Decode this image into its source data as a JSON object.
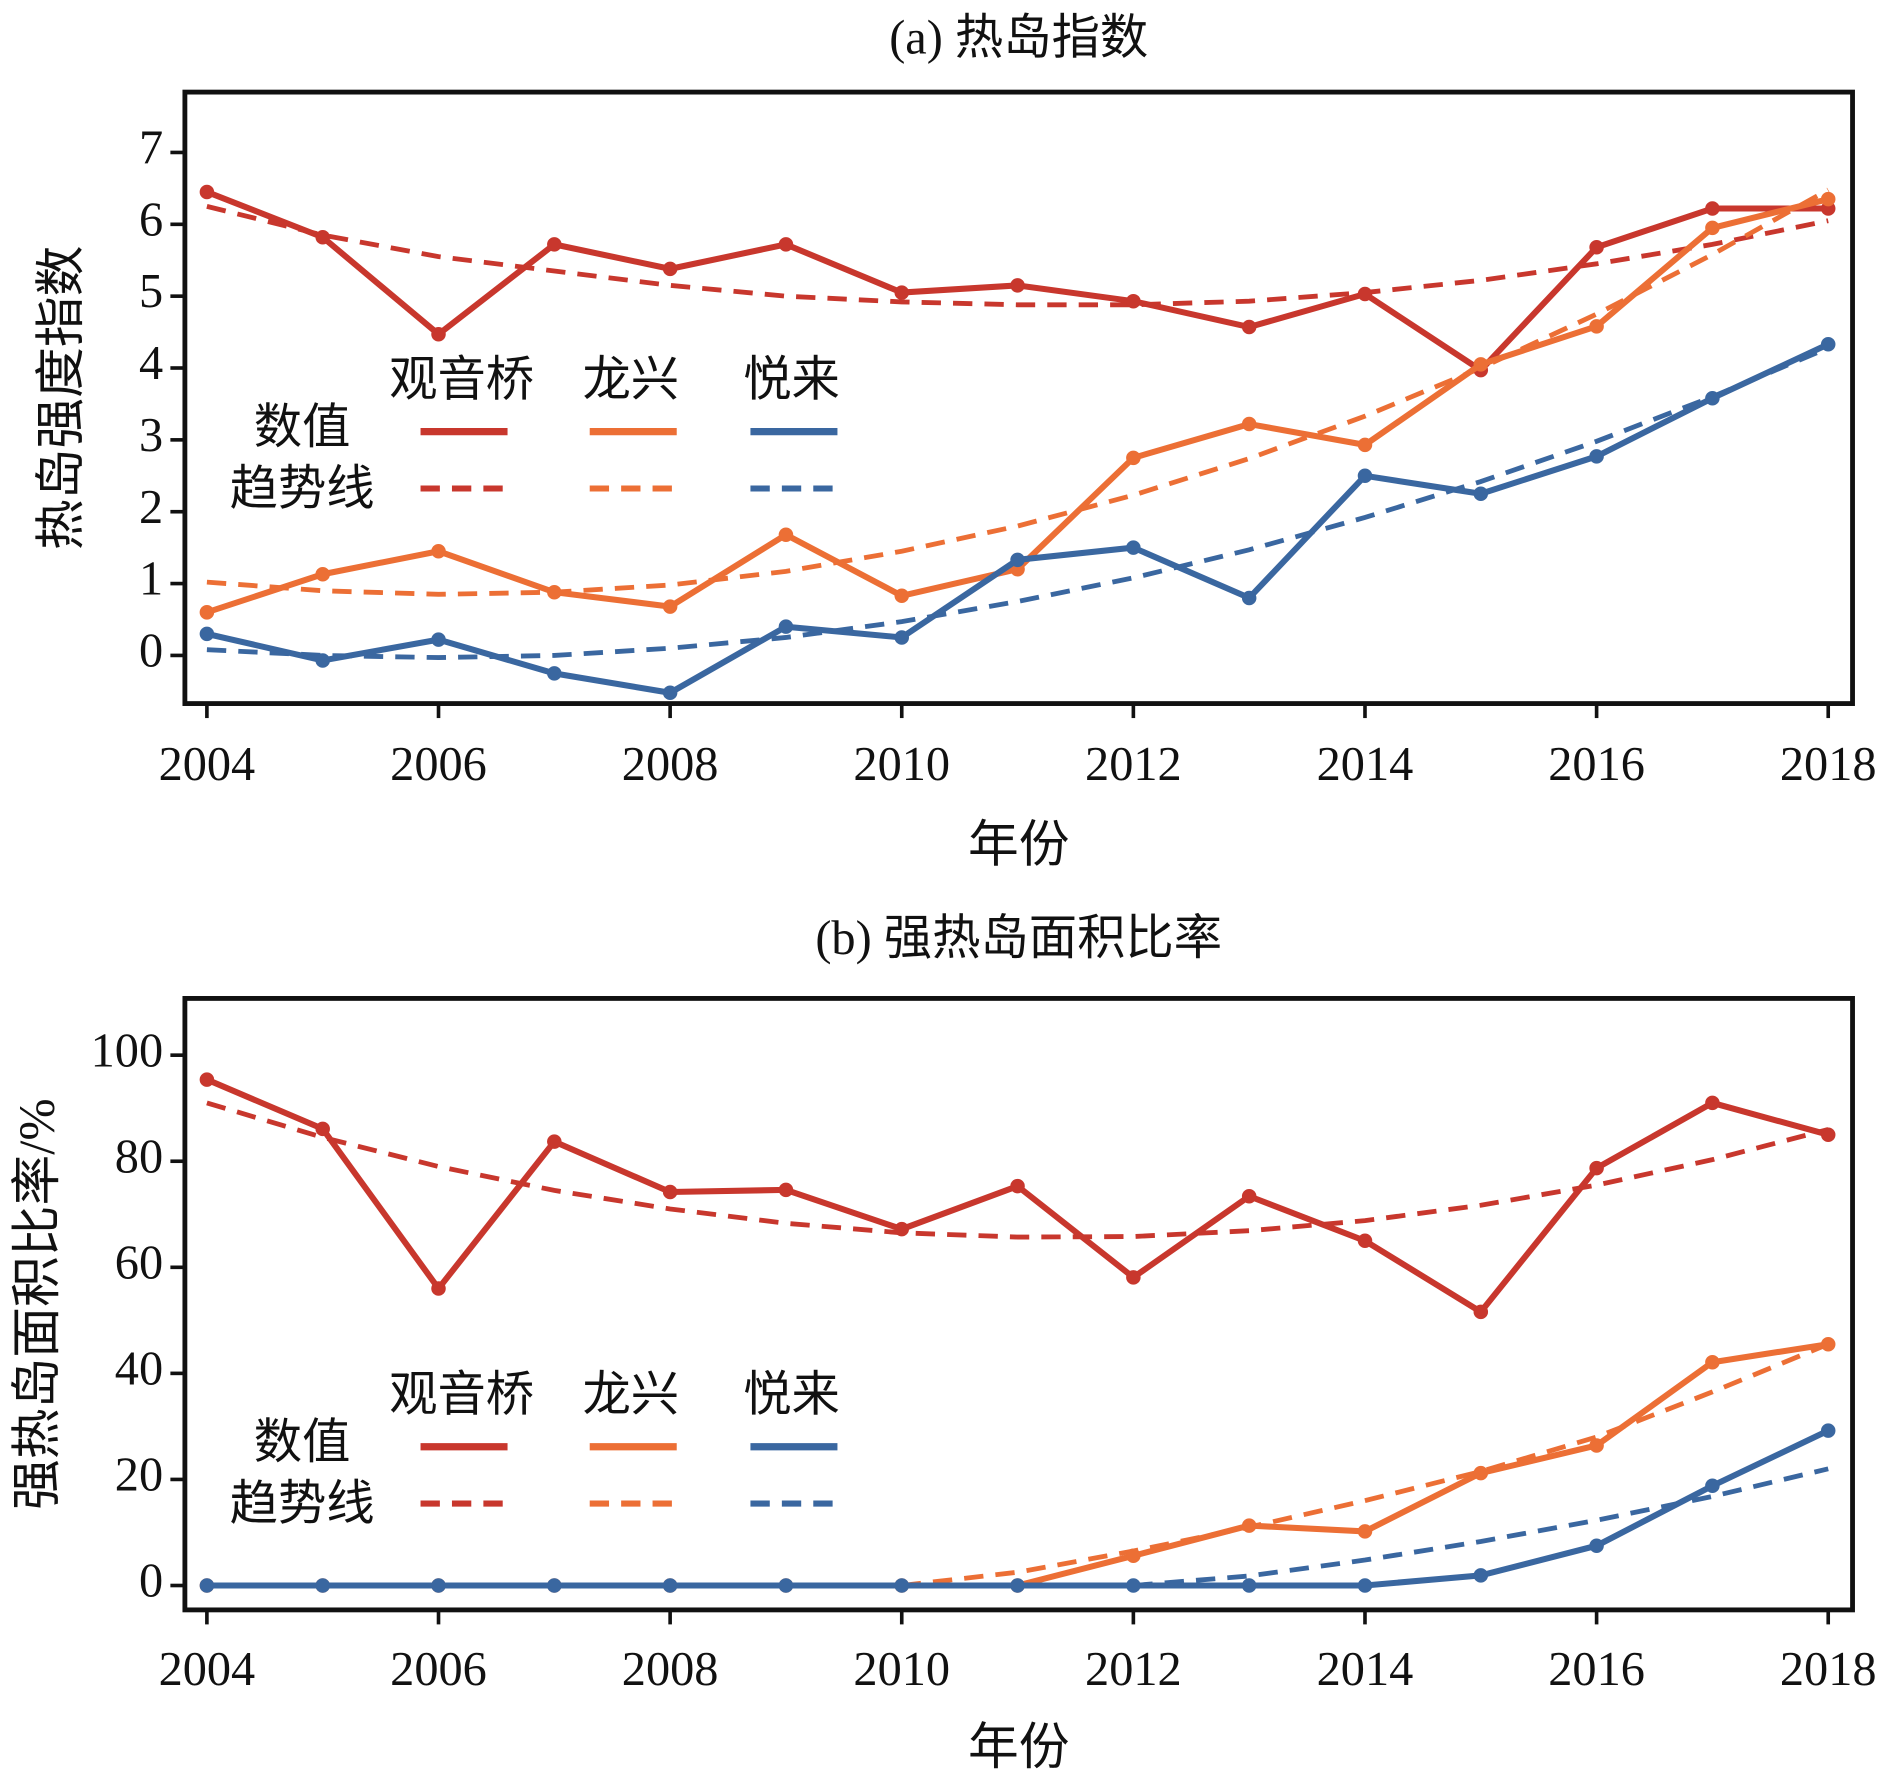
{
  "chart_data": [
    {
      "type": "line",
      "title": "(a) 热岛指数",
      "xlabel": "年份",
      "ylabel": "热岛强度指数",
      "x": [
        2004,
        2005,
        2006,
        2007,
        2008,
        2009,
        2010,
        2011,
        2012,
        2013,
        2014,
        2015,
        2016,
        2017,
        2018
      ],
      "xlim": [
        2003.81,
        2018.21
      ],
      "xticks": [
        2004,
        2006,
        2008,
        2010,
        2012,
        2014,
        2016,
        2018
      ],
      "ylim": [
        -0.67,
        7.84
      ],
      "yticks": [
        0,
        1,
        2,
        3,
        4,
        5,
        6,
        7
      ],
      "legend_rows": [
        "数值",
        "趋势线"
      ],
      "series": [
        {
          "name": "观音桥",
          "color": "#c8372d",
          "values": [
            6.45,
            5.82,
            4.47,
            5.72,
            5.38,
            5.72,
            5.05,
            5.15,
            4.93,
            4.57,
            5.03,
            3.97,
            5.68,
            6.22,
            6.22
          ],
          "trend": [
            6.25,
            5.85,
            5.55,
            5.35,
            5.15,
            5.0,
            4.92,
            4.88,
            4.88,
            4.93,
            5.05,
            5.22,
            5.45,
            5.72,
            6.05
          ]
        },
        {
          "name": "龙兴",
          "color": "#ec6f35",
          "values": [
            0.6,
            1.13,
            1.45,
            0.88,
            0.68,
            1.68,
            0.83,
            1.2,
            2.75,
            3.22,
            2.93,
            4.05,
            4.58,
            5.95,
            6.35
          ],
          "trend": [
            1.02,
            0.9,
            0.85,
            0.88,
            0.98,
            1.17,
            1.45,
            1.8,
            2.23,
            2.74,
            3.33,
            4.0,
            4.75,
            5.58,
            6.48
          ]
        },
        {
          "name": "悦来",
          "color": "#3a67a0",
          "values": [
            0.3,
            -0.07,
            0.22,
            -0.25,
            -0.52,
            0.4,
            0.25,
            1.33,
            1.5,
            0.8,
            2.5,
            2.25,
            2.77,
            3.58,
            4.33
          ],
          "trend": [
            0.08,
            0.0,
            -0.03,
            0.0,
            0.1,
            0.25,
            0.47,
            0.75,
            1.08,
            1.47,
            1.92,
            2.42,
            2.98,
            3.6,
            4.28
          ]
        }
      ]
    },
    {
      "type": "line",
      "title": "(b) 强热岛面积比率",
      "xlabel": "年份",
      "ylabel": "强热岛面积比率/%",
      "x": [
        2004,
        2005,
        2006,
        2007,
        2008,
        2009,
        2010,
        2011,
        2012,
        2013,
        2014,
        2015,
        2016,
        2017,
        2018
      ],
      "xlim": [
        2003.81,
        2018.21
      ],
      "xticks": [
        2004,
        2006,
        2008,
        2010,
        2012,
        2014,
        2016,
        2018
      ],
      "ylim": [
        -4.6,
        110.7
      ],
      "yticks": [
        0,
        20,
        40,
        60,
        80,
        100
      ],
      "legend_rows": [
        "数值",
        "趋势线"
      ],
      "series": [
        {
          "name": "观音桥",
          "color": "#c8372d",
          "values": [
            95.4,
            86.1,
            56.0,
            83.7,
            74.2,
            74.6,
            67.2,
            75.3,
            58.1,
            73.4,
            65.0,
            51.6,
            78.7,
            91.0,
            85.0
          ],
          "trend": [
            91,
            84.5,
            79,
            74.5,
            71,
            68.3,
            66.5,
            65.7,
            65.8,
            66.9,
            68.8,
            71.7,
            75.5,
            80.3,
            86
          ]
        },
        {
          "name": "龙兴",
          "color": "#ec6f35",
          "values": [
            0,
            0,
            0,
            0,
            0,
            0,
            0,
            0,
            5.6,
            11.3,
            10.2,
            21.2,
            26.4,
            42.1,
            45.5
          ],
          "trend": [
            null,
            null,
            null,
            null,
            null,
            null,
            0,
            2.5,
            6.5,
            11,
            16,
            21.5,
            28,
            36.5,
            45.5
          ]
        },
        {
          "name": "悦来",
          "color": "#3a67a0",
          "values": [
            0,
            0,
            0,
            0,
            0,
            0,
            0,
            0,
            0,
            0,
            0,
            1.9,
            7.5,
            18.8,
            29.2
          ],
          "trend": [
            null,
            null,
            null,
            null,
            null,
            null,
            null,
            null,
            0,
            1.8,
            4.8,
            8.3,
            12.3,
            16.8,
            22
          ]
        }
      ]
    }
  ]
}
